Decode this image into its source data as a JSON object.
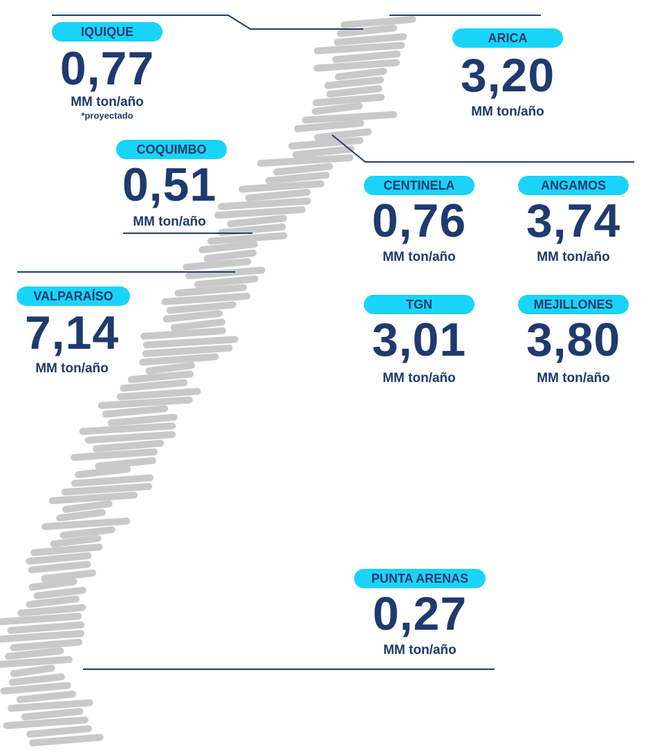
{
  "ports": [
    {
      "name": "IQUIQUE",
      "value": "0,77",
      "unit": "MM ton/año",
      "note": "*proyectado"
    },
    {
      "name": "ARICA",
      "value": "3,20",
      "unit": "MM ton/año"
    },
    {
      "name": "COQUIMBO",
      "value": "0,51",
      "unit": "MM ton/año"
    },
    {
      "name": "CENTINELA",
      "value": "0,76",
      "unit": "MM ton/año"
    },
    {
      "name": "ANGAMOS",
      "value": "3,74",
      "unit": "MM ton/año"
    },
    {
      "name": "VALPARAÍSO",
      "value": "7,14",
      "unit": "MM ton/año"
    },
    {
      "name": "TGN",
      "value": "3,01",
      "unit": "MM ton/año"
    },
    {
      "name": "MEJILLONES",
      "value": "3,80",
      "unit": "MM ton/año"
    },
    {
      "name": "PUNTA ARENAS",
      "value": "0,27",
      "unit": "MM ton/año"
    }
  ]
}
